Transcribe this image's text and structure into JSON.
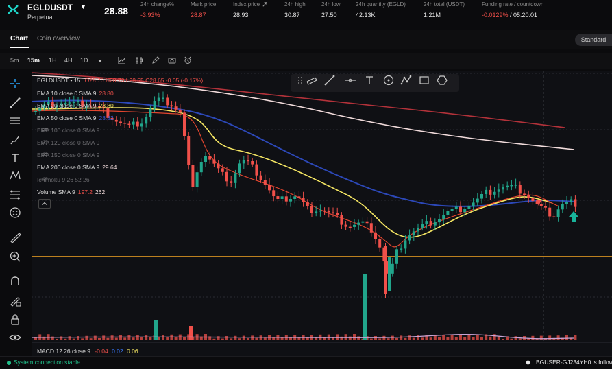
{
  "header": {
    "symbol": "EGLDUSDT",
    "contract_type": "Perpetual",
    "last_price": "28.88",
    "stats": [
      {
        "label": "24h change%",
        "value": "-3.93%",
        "color": "red"
      },
      {
        "label": "Mark price",
        "value": "28.87",
        "color": "red"
      },
      {
        "label": "Index price",
        "value": "28.93",
        "color": "white"
      },
      {
        "label": "24h high",
        "value": "30.87",
        "color": "white"
      },
      {
        "label": "24h low",
        "value": "27.50",
        "color": "white"
      },
      {
        "label": "24h quantity (EGLD)",
        "value": "42.13K",
        "color": "white"
      },
      {
        "label": "24h total (USDT)",
        "value": "1.21M",
        "color": "white"
      }
    ],
    "funding": {
      "label": "Funding rate / countdown",
      "rate": "-0.0129%",
      "countdown": " / 05:20:01"
    }
  },
  "tabs": {
    "chart": "Chart",
    "overview": "Coin overview",
    "standard": "Standard"
  },
  "intervals": [
    "5m",
    "15m",
    "1H",
    "4H",
    "1D"
  ],
  "active_interval": "15m",
  "legend": {
    "ohlc_prefix": "EGLDUSDT • 15",
    "o": "O28.70",
    "h": "H28.73",
    "l": "L28.55",
    "c": "C28.65",
    "chg": "-0.05 (-0.17%)",
    "rows": [
      {
        "label": "EMA 10 close 0 SMA 9",
        "value": "28.80",
        "color": "#f0504a",
        "dim": false
      },
      {
        "label": "EMA 20 close 0 SMA 9",
        "value": "28.80",
        "color": "#f5e663",
        "dim": false
      },
      {
        "label": "EMA 50 close 0 SMA 9",
        "value": "28.82",
        "color": "#3b5bd6",
        "dim": false
      },
      {
        "label": "EMA 100 close 0 SMA 9",
        "value": "",
        "color": "",
        "dim": true
      },
      {
        "label": "EMA 120 close 0 SMA 9",
        "value": "",
        "color": "",
        "dim": true
      },
      {
        "label": "EMA 150 close 0 SMA 9",
        "value": "",
        "color": "",
        "dim": true
      },
      {
        "label": "EMA 200 close 0 SMA 9",
        "value": "29.64",
        "color": "#f3dede",
        "dim": false
      },
      {
        "label": "Ichimoku 9 26 52 26",
        "value": "",
        "color": "",
        "dim": true
      },
      {
        "label": "Volume SMA 9",
        "value": "197.2",
        "value2": "262",
        "color": "#f0504a",
        "dim": false
      }
    ],
    "macd": {
      "label": "MACD 12 26 close 9",
      "v1": "-0.04",
      "v2": "0.02",
      "v3": "0.06"
    }
  },
  "status": {
    "connection": "System connection stable",
    "ticker": "BGUSER-GJ234YH0 is follow"
  },
  "colors": {
    "up": "#21a58b",
    "down": "#f0504a",
    "ema10": "#e2452e",
    "ema20": "#f5e663",
    "ema50": "#2c48b8",
    "ema200": "#f2dcdc",
    "ema_long": "#b3323a",
    "price_line": "#f5a623"
  }
}
